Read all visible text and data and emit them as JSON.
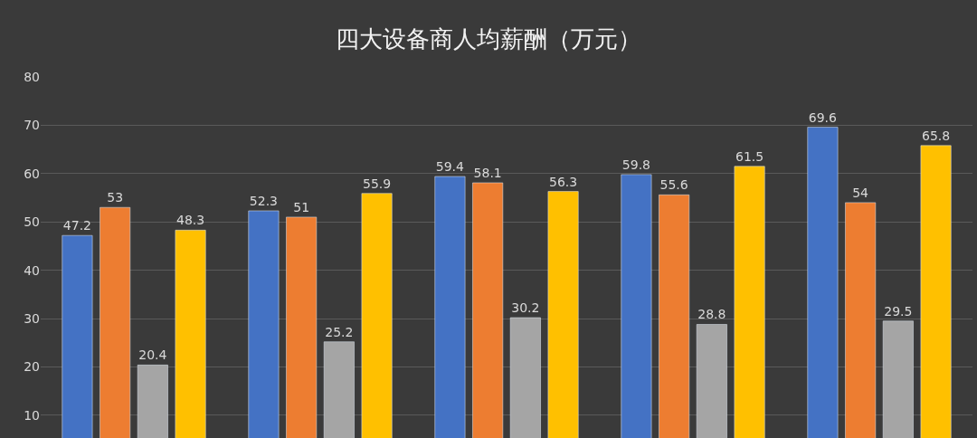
{
  "chart_data": {
    "type": "bar",
    "title": "四大设备商人均薪酬（万元）",
    "categories": [
      null,
      null,
      null,
      null,
      null
    ],
    "series": [
      {
        "color": "#4472c4",
        "values": [
          47.2,
          52.3,
          59.4,
          59.8,
          69.6
        ]
      },
      {
        "color": "#ed7d31",
        "values": [
          53,
          51,
          58.1,
          55.6,
          54
        ]
      },
      {
        "color": "#a5a5a5",
        "values": [
          20.4,
          25.2,
          30.2,
          28.8,
          29.5
        ]
      },
      {
        "color": "#ffc000",
        "values": [
          48.3,
          55.9,
          56.3,
          61.5,
          65.8
        ]
      }
    ],
    "ylim": [
      5.3,
      80
    ],
    "yticks": [
      10,
      20,
      30,
      40,
      50,
      60,
      70,
      80
    ],
    "grid": "y",
    "legend": false,
    "tick_labels": "y",
    "data_labels": true
  }
}
